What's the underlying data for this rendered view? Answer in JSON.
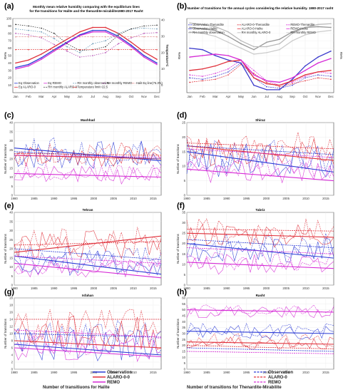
{
  "chart_data": [
    {
      "id": "a",
      "type": "line",
      "title": "Monthly mean relative humidity comparing with the equilibrium lines",
      "title2": "for the transitions for Halite and the thenardite-mirabilite1980-2017 Rasht",
      "x": [
        "Jan",
        "Feb",
        "Mar",
        "Apr",
        "May",
        "Jun",
        "Jul",
        "Aug",
        "Sep",
        "Oct",
        "Nov",
        "Dec"
      ],
      "ylabel": "RH%",
      "y2label": "Temperature°C",
      "ylim": [
        0,
        100
      ],
      "yticks": [
        10,
        20,
        30,
        40,
        50,
        60,
        70,
        80,
        90,
        100
      ],
      "series": [
        {
          "name": "Eq Observation",
          "color": "#2b3bd6",
          "dash": "",
          "values": [
            34,
            38,
            47,
            58,
            68,
            78,
            84,
            84,
            76,
            64,
            50,
            40
          ]
        },
        {
          "name": "Eq ALARO-0",
          "color": "#e0303a",
          "dash": "",
          "values": [
            40,
            44,
            52,
            62,
            72,
            82,
            88,
            88,
            80,
            68,
            55,
            45
          ]
        },
        {
          "name": "Eq REMO",
          "color": "#d62ad6",
          "dash": "",
          "values": [
            32,
            36,
            45,
            56,
            67,
            77,
            82,
            82,
            74,
            62,
            48,
            38
          ]
        },
        {
          "name": "RH monthly observation",
          "color": "#5a8fb0",
          "dash": "1.5,1.5",
          "values": [
            86,
            84,
            82,
            73,
            62,
            54,
            66,
            70,
            80,
            86,
            87,
            86
          ]
        },
        {
          "name": "RH monthly ALARO-0",
          "color": "#222",
          "dash": "1.5,1.5",
          "values": [
            92,
            90,
            87,
            80,
            66,
            57,
            58,
            62,
            78,
            86,
            90,
            91
          ]
        },
        {
          "name": "RH monthly REMO",
          "color": "#b040b0",
          "dash": "1.5,1.5",
          "values": [
            80,
            78,
            74,
            65,
            56,
            48,
            50,
            54,
            66,
            74,
            80,
            81
          ]
        },
        {
          "name": "Halit Eq line(75.3%)",
          "color": "#e09090",
          "dash": "3,1",
          "values": [
            75.3,
            75.3,
            75.3,
            75.3,
            75.3,
            75.3,
            75.3,
            75.3,
            75.3,
            75.3,
            75.3,
            75.3
          ]
        },
        {
          "name": "Temperature limit=22.5",
          "color": "#e03030",
          "dash": "2,1",
          "values": [
            58,
            58,
            58,
            58,
            58,
            58,
            58,
            58,
            58,
            58,
            58,
            58
          ]
        }
      ],
      "legend": [
        "Eq Observation",
        "Eq REMO",
        "RH monthly observation",
        "RH monthly REMO",
        "Halit Eq line(75.3%)",
        "Eq ALARO-0",
        "RH monthly ALARO-0",
        "Temperature limit=22.5"
      ],
      "y2ticks": [
        0,
        10,
        20,
        30,
        40
      ]
    },
    {
      "id": "b",
      "type": "line",
      "title": "Number of transitions for the annual cycles considering the relative humidity. 1980-2017 rasht",
      "x": [
        "Jan",
        "Feb",
        "Mar",
        "Apr",
        "May",
        "Jun",
        "Jul",
        "Aug",
        "Sep",
        "Oct",
        "Nov",
        "Dec"
      ],
      "ylabel": "RH%",
      "legend": [
        "Observation-Thenardite",
        "ALARO-0-Thenardite",
        "REMO-Thenardite",
        "Observation-Halite",
        "ALARO-0-Halite",
        "REMO-Halite",
        "RH monthly observation",
        "RH monthly ALARO-0",
        "RH monthly REMO"
      ],
      "series": [
        {
          "name": "Observation-Thenardite",
          "color": "#3a3acc",
          "dash": "2,1",
          "values": [
            20,
            18,
            22,
            28,
            40,
            20,
            8,
            6,
            10,
            20,
            24,
            22
          ]
        },
        {
          "name": "ALARO-0-Thenardite",
          "color": "#e0303a",
          "dash": "2,1",
          "values": [
            14,
            16,
            18,
            24,
            38,
            26,
            14,
            8,
            12,
            16,
            20,
            18
          ]
        },
        {
          "name": "REMO-Thenardite",
          "color": "#d62ad6",
          "dash": "2,1",
          "values": [
            24,
            22,
            26,
            32,
            44,
            30,
            16,
            10,
            14,
            22,
            28,
            26
          ]
        },
        {
          "name": "Observation-Halite",
          "color": "#3a3acc",
          "dash": "",
          "values": [
            60,
            58,
            50,
            44,
            40,
            10,
            4,
            4,
            18,
            36,
            48,
            56
          ]
        },
        {
          "name": "ALARO-0-Halite",
          "color": "#e0303a",
          "dash": "",
          "values": [
            30,
            32,
            36,
            42,
            44,
            20,
            12,
            10,
            16,
            24,
            28,
            30
          ]
        },
        {
          "name": "REMO-Halite",
          "color": "#d62ad6",
          "dash": "",
          "values": [
            48,
            50,
            52,
            50,
            44,
            24,
            16,
            14,
            20,
            30,
            40,
            46
          ]
        },
        {
          "name": "RH monthly observation",
          "color": "#999",
          "dash": "",
          "values": [
            88,
            86,
            84,
            76,
            66,
            58,
            68,
            72,
            82,
            88,
            89,
            88
          ]
        },
        {
          "name": "RH monthly ALARO-0",
          "color": "#bbb",
          "dash": "",
          "values": [
            94,
            92,
            89,
            82,
            70,
            62,
            62,
            66,
            80,
            88,
            92,
            93
          ]
        },
        {
          "name": "RH monthly REMO",
          "color": "#ccc",
          "dash": "",
          "values": [
            82,
            80,
            76,
            68,
            60,
            52,
            54,
            58,
            70,
            78,
            82,
            84
          ]
        }
      ]
    },
    {
      "id": "c",
      "type": "line",
      "title": "Mashhad",
      "ylabel": "Number of transitions",
      "xlim": [
        1980,
        2017
      ],
      "xticks": [
        1980,
        1985,
        1990,
        1995,
        2000,
        2005,
        2010,
        2015
      ],
      "ylim": [
        0,
        40
      ],
      "yticks": [
        0,
        5,
        10,
        15,
        20,
        25,
        30,
        35,
        40
      ],
      "trends": [
        {
          "series": "Observation Halite",
          "color": "#2b3bd6",
          "dash": "",
          "from": 26,
          "to": 19
        },
        {
          "series": "ALARO-0 Halite",
          "color": "#e0303a",
          "dash": "",
          "from": 22,
          "to": 20
        },
        {
          "series": "REMO Halite",
          "color": "#d62ad6",
          "dash": "",
          "from": 12,
          "to": 10
        },
        {
          "series": "Observation Thenardite",
          "color": "#2b3bd6",
          "dash": "2,1",
          "from": 24,
          "to": 20
        },
        {
          "series": "ALARO-0 Thenardite",
          "color": "#e0303a",
          "dash": "2,1",
          "from": 23,
          "to": 22
        },
        {
          "series": "REMO Thenardite",
          "color": "#d62ad6",
          "dash": "2,1",
          "from": 22,
          "to": 21
        }
      ],
      "series_base": [
        {
          "name": "Observation",
          "color": "#2b3bd6",
          "mean": 22,
          "amp": 8,
          "seed": 1
        },
        {
          "name": "ALARO-0",
          "color": "#e0303a",
          "mean": 21,
          "amp": 6,
          "seed": 2
        },
        {
          "name": "REMO",
          "color": "#d62ad6",
          "mean": 11,
          "amp": 5,
          "seed": 3
        }
      ]
    },
    {
      "id": "d",
      "type": "line",
      "title": "Shiraz",
      "ylabel": "Number of transitions",
      "xlim": [
        1980,
        2017
      ],
      "xticks": [
        1980,
        1985,
        1990,
        1995,
        2000,
        2005,
        2010,
        2015
      ],
      "ylim": [
        0,
        25
      ],
      "yticks": [
        0,
        5,
        10,
        15,
        20,
        25
      ],
      "trends": [
        {
          "series": "Observation Halite",
          "color": "#2b3bd6",
          "dash": "",
          "from": 15,
          "to": 8
        },
        {
          "series": "ALARO-0 Halite",
          "color": "#e0303a",
          "dash": "",
          "from": 17,
          "to": 12
        },
        {
          "series": "REMO Halite",
          "color": "#d62ad6",
          "dash": "",
          "from": 9,
          "to": 5
        },
        {
          "series": "Observation Thenardite",
          "color": "#2b3bd6",
          "dash": "2,1",
          "from": 17,
          "to": 14
        },
        {
          "series": "ALARO-0 Thenardite",
          "color": "#e0303a",
          "dash": "2,1",
          "from": 18,
          "to": 16
        },
        {
          "series": "REMO Thenardite",
          "color": "#d62ad6",
          "dash": "2,1",
          "from": 16,
          "to": 13
        }
      ],
      "series_base": [
        {
          "name": "Observation",
          "color": "#2b3bd6",
          "mean": 12,
          "amp": 6,
          "seed": 4
        },
        {
          "name": "ALARO-0",
          "color": "#e0303a",
          "mean": 15,
          "amp": 5,
          "seed": 5
        },
        {
          "name": "REMO",
          "color": "#d62ad6",
          "mean": 8,
          "amp": 4,
          "seed": 6
        }
      ]
    },
    {
      "id": "e",
      "type": "line",
      "title": "Tehran",
      "ylabel": "Number of transitions",
      "xlim": [
        1980,
        2017
      ],
      "xticks": [
        1980,
        1985,
        1990,
        1995,
        2000,
        2005,
        2010,
        2015
      ],
      "ylim": [
        0,
        40
      ],
      "yticks": [
        0,
        5,
        10,
        15,
        20,
        25,
        30,
        35,
        40
      ],
      "trends": [
        {
          "series": "Observation Halite",
          "color": "#2b3bd6",
          "dash": "",
          "from": 16,
          "to": 6
        },
        {
          "series": "ALARO-0 Halite",
          "color": "#e0303a",
          "dash": "",
          "from": 18,
          "to": 27
        },
        {
          "series": "REMO Halite",
          "color": "#d62ad6",
          "dash": "",
          "from": 12,
          "to": 4
        },
        {
          "series": "Observation Thenardite",
          "color": "#2b3bd6",
          "dash": "2,1",
          "from": 20,
          "to": 14
        },
        {
          "series": "ALARO-0 Thenardite",
          "color": "#e0303a",
          "dash": "2,1",
          "from": 22,
          "to": 24
        },
        {
          "series": "REMO Thenardite",
          "color": "#d62ad6",
          "dash": "2,1",
          "from": 16,
          "to": 12
        }
      ],
      "series_base": [
        {
          "name": "Observation",
          "color": "#2b3bd6",
          "mean": 12,
          "amp": 7,
          "seed": 7
        },
        {
          "name": "ALARO-0",
          "color": "#e0303a",
          "mean": 22,
          "amp": 8,
          "seed": 8
        },
        {
          "name": "REMO",
          "color": "#d62ad6",
          "mean": 9,
          "amp": 5,
          "seed": 9
        }
      ]
    },
    {
      "id": "f",
      "type": "line",
      "title": "Tabriz",
      "ylabel": "Number of transitions",
      "xlim": [
        1980,
        2017
      ],
      "xticks": [
        1980,
        1985,
        1990,
        1995,
        2000,
        2005,
        2010,
        2015
      ],
      "ylim": [
        0,
        35
      ],
      "yticks": [
        0,
        5,
        10,
        15,
        20,
        25,
        30,
        35
      ],
      "trends": [
        {
          "series": "Observation Halite",
          "color": "#2b3bd6",
          "dash": "",
          "from": 20,
          "to": 13
        },
        {
          "series": "ALARO-0 Halite",
          "color": "#e0303a",
          "dash": "",
          "from": 25,
          "to": 23
        },
        {
          "series": "REMO Halite",
          "color": "#d62ad6",
          "dash": "",
          "from": 11,
          "to": 8
        },
        {
          "series": "Observation Thenardite",
          "color": "#2b3bd6",
          "dash": "2,1",
          "from": 22,
          "to": 18
        },
        {
          "series": "ALARO-0 Thenardite",
          "color": "#e0303a",
          "dash": "2,1",
          "from": 27,
          "to": 26
        },
        {
          "series": "REMO Thenardite",
          "color": "#d62ad6",
          "dash": "2,1",
          "from": 18,
          "to": 15
        }
      ],
      "series_base": [
        {
          "name": "Observation",
          "color": "#2b3bd6",
          "mean": 17,
          "amp": 6,
          "seed": 10
        },
        {
          "name": "ALARO-0",
          "color": "#e0303a",
          "mean": 24,
          "amp": 6,
          "seed": 11
        },
        {
          "name": "REMO",
          "color": "#d62ad6",
          "mean": 10,
          "amp": 5,
          "seed": 12
        }
      ]
    },
    {
      "id": "g",
      "type": "line",
      "title": "Isfahan",
      "ylabel": "Number of transitions",
      "xlim": [
        1980,
        2017
      ],
      "xticks": [
        1980,
        1985,
        1990,
        1995,
        2000,
        2005,
        2010,
        2015
      ],
      "ylim": [
        0,
        20
      ],
      "yticks": [
        0,
        2,
        4,
        6,
        8,
        10,
        12,
        14,
        16,
        18,
        20
      ],
      "trends": [
        {
          "series": "Observation Halite",
          "color": "#2b3bd6",
          "dash": "",
          "from": 7,
          "to": 4
        },
        {
          "series": "ALARO-0 Halite",
          "color": "#e0303a",
          "dash": "",
          "from": 8,
          "to": 6
        },
        {
          "series": "REMO Halite",
          "color": "#d62ad6",
          "dash": "",
          "from": 6,
          "to": 3.5
        },
        {
          "series": "Observation Thenardite",
          "color": "#2b3bd6",
          "dash": "2,1",
          "from": 10,
          "to": 9
        },
        {
          "series": "ALARO-0 Thenardite",
          "color": "#e0303a",
          "dash": "2,1",
          "from": 14,
          "to": 14
        },
        {
          "series": "REMO Thenardite",
          "color": "#d62ad6",
          "dash": "2,1",
          "from": 11,
          "to": 9
        }
      ],
      "series_base": [
        {
          "name": "Observation",
          "color": "#2b3bd6",
          "mean": 7,
          "amp": 5,
          "seed": 13
        },
        {
          "name": "ALARO-0",
          "color": "#e0303a",
          "mean": 10,
          "amp": 5,
          "seed": 14
        },
        {
          "name": "REMO",
          "color": "#d62ad6",
          "mean": 6,
          "amp": 4,
          "seed": 15
        }
      ]
    },
    {
      "id": "h",
      "type": "line",
      "title": "Rasht",
      "ylabel": "Number of transitions",
      "xlim": [
        1980,
        2017
      ],
      "xticks": [
        1980,
        1985,
        1990,
        1995,
        2000,
        2005,
        2010,
        2015
      ],
      "ylim": [
        0,
        60
      ],
      "yticks": [
        0,
        5,
        10,
        15,
        20,
        25,
        30,
        35,
        40,
        45,
        50,
        55,
        60
      ],
      "trends": [
        {
          "series": "Observation Halite",
          "color": "#2b3bd6",
          "dash": "",
          "from": 32,
          "to": 30
        },
        {
          "series": "ALARO-0 Halite",
          "color": "#e0303a",
          "dash": "",
          "from": 23,
          "to": 21
        },
        {
          "series": "REMO Halite",
          "color": "#d62ad6",
          "dash": "",
          "from": 50,
          "to": 48
        },
        {
          "series": "Observation Thenardite",
          "color": "#2b3bd6",
          "dash": "2,1",
          "from": 18,
          "to": 15
        },
        {
          "series": "ALARO-0 Thenardite",
          "color": "#e0303a",
          "dash": "2,1",
          "from": 20,
          "to": 17
        },
        {
          "series": "REMO Thenardite",
          "color": "#d62ad6",
          "dash": "2,1",
          "from": 15,
          "to": 13
        }
      ],
      "series_base": [
        {
          "name": "Observation",
          "color": "#2b3bd6",
          "mean": 31,
          "amp": 6,
          "seed": 16
        },
        {
          "name": "ALARO-0",
          "color": "#e0303a",
          "mean": 22,
          "amp": 6,
          "seed": 17
        },
        {
          "name": "REMO",
          "color": "#d62ad6",
          "mean": 48,
          "amp": 5,
          "seed": 18
        }
      ]
    }
  ],
  "bottom_legend": {
    "halite_title": "Number of transitiuons for Halite",
    "thenardite_title": "Number of transitions for Thenardite-Mirabilite",
    "entries": [
      {
        "label": "Observation",
        "color": "#2b3bd6"
      },
      {
        "label": "ALARO-0-0",
        "color": "#e0303a"
      },
      {
        "label": "REMO",
        "color": "#d62ad6"
      }
    ],
    "entries2": [
      {
        "label": "Observation",
        "color": "#2b3bd6"
      },
      {
        "label": "ALARO-0",
        "color": "#e0303a"
      },
      {
        "label": "REMO",
        "color": "#d62ad6"
      }
    ]
  }
}
